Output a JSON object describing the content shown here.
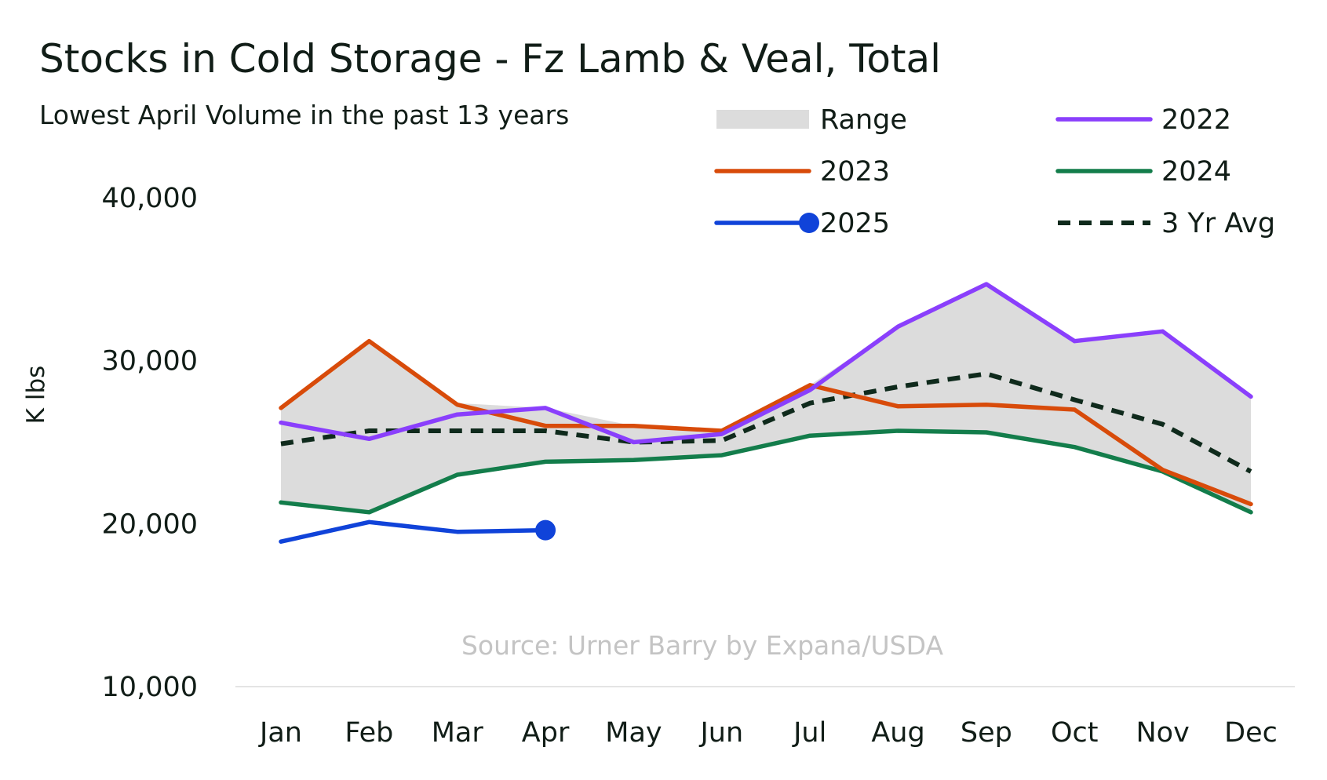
{
  "chart_data": {
    "type": "line",
    "title": "Stocks in Cold Storage - Fz Lamb & Veal, Total",
    "subtitle": "Lowest April Volume in the past 13 years",
    "ylabel": "K lbs",
    "xlabel": "",
    "source": "Source: Urner Barry by Expana/USDA",
    "categories": [
      "Jan",
      "Feb",
      "Mar",
      "Apr",
      "May",
      "Jun",
      "Jul",
      "Aug",
      "Sep",
      "Oct",
      "Nov",
      "Dec"
    ],
    "ylim": [
      10000,
      40000
    ],
    "yticks": [
      10000,
      20000,
      30000,
      40000
    ],
    "ytick_labels": [
      "10,000",
      "20,000",
      "30,000",
      "40,000"
    ],
    "grid": false,
    "legend_position": "top-right",
    "range": {
      "name": "Range",
      "color": "#dcdcdc",
      "low": [
        21300,
        20700,
        23000,
        23800,
        23900,
        24200,
        25400,
        25700,
        25600,
        24700,
        23200,
        20700
      ],
      "high": [
        27100,
        31200,
        27400,
        27100,
        26000,
        25700,
        28500,
        32100,
        34700,
        31200,
        31800,
        27800
      ]
    },
    "series": [
      {
        "name": "2022",
        "color": "#8a3ffc",
        "style": "solid",
        "marker_last": false,
        "values": [
          26200,
          25200,
          26700,
          27100,
          25000,
          25500,
          28200,
          32100,
          34700,
          31200,
          31800,
          27800
        ]
      },
      {
        "name": "2023",
        "color": "#d84b0a",
        "style": "solid",
        "marker_last": false,
        "values": [
          27100,
          31200,
          27300,
          26000,
          26000,
          25700,
          28500,
          27200,
          27300,
          27000,
          23300,
          21200
        ]
      },
      {
        "name": "2024",
        "color": "#137d4b",
        "style": "solid",
        "marker_last": false,
        "values": [
          21300,
          20700,
          23000,
          23800,
          23900,
          24200,
          25400,
          25700,
          25600,
          24700,
          23200,
          20700
        ]
      },
      {
        "name": "2025",
        "color": "#1043d9",
        "style": "solid",
        "marker_last": true,
        "values": [
          18900,
          20100,
          19500,
          19600,
          null,
          null,
          null,
          null,
          null,
          null,
          null,
          null
        ]
      },
      {
        "name": "3 Yr Avg",
        "color": "#0f2a1c",
        "style": "dashed",
        "marker_last": false,
        "values": [
          24900,
          25700,
          25700,
          25700,
          25000,
          25100,
          27400,
          28400,
          29200,
          27600,
          26100,
          23200
        ]
      }
    ]
  }
}
